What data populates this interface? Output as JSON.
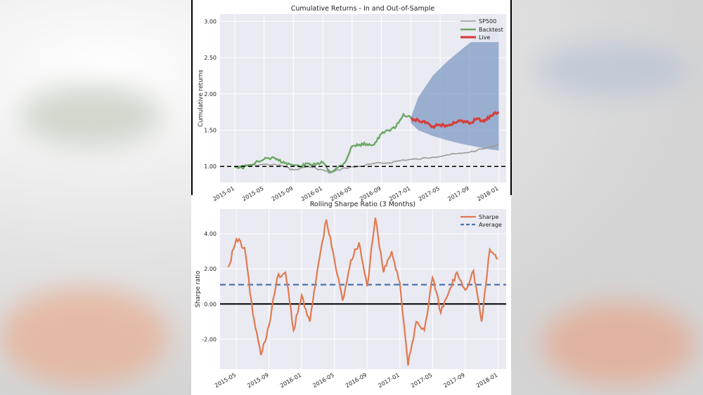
{
  "colors": {
    "plot_bg": "#eaeaf2",
    "grid": "#ffffff",
    "sp500": "#999999",
    "backtest": "#6aa763",
    "live": "#d3403d",
    "cone": "#7f9bc4",
    "sharpe": "#e07a4f",
    "average": "#4c72b0"
  },
  "chart_data": [
    {
      "type": "line",
      "title": "Cumulative Returns - In and Out-of-Sample",
      "xlabel": "",
      "ylabel": "Cumulative returns",
      "ylim": [
        0.78,
        3.1
      ],
      "yticks": [
        "1.00",
        "1.50",
        "2.00",
        "2.50",
        "3.00"
      ],
      "xticks": [
        "2015-01",
        "2015-05",
        "2015-09",
        "2016-01",
        "2016-05",
        "2016-09",
        "2017-01",
        "2017-05",
        "2017-09",
        "2018-01"
      ],
      "legend": {
        "position": "top-right",
        "entries": [
          "SP500",
          "Backtest",
          "Live"
        ]
      },
      "reference_line": 1.0,
      "grid": true,
      "series": [
        {
          "name": "SP500",
          "x": [
            "2015-01",
            "2015-03",
            "2015-05",
            "2015-07",
            "2015-08",
            "2015-09",
            "2015-11",
            "2016-01",
            "2016-02",
            "2016-04",
            "2016-06",
            "2016-08",
            "2016-10",
            "2016-12",
            "2017-02",
            "2017-04",
            "2017-06",
            "2017-08",
            "2017-10",
            "2017-12",
            "2018-01"
          ],
          "values": [
            1.0,
            1.01,
            1.03,
            1.02,
            0.99,
            0.95,
            1.0,
            0.95,
            0.91,
            0.98,
            1.0,
            1.04,
            1.05,
            1.09,
            1.1,
            1.13,
            1.16,
            1.18,
            1.22,
            1.27,
            1.31
          ]
        },
        {
          "name": "Backtest",
          "x": [
            "2015-01",
            "2015-02",
            "2015-03",
            "2015-05",
            "2015-06",
            "2015-07",
            "2015-08",
            "2015-09",
            "2015-10",
            "2015-11",
            "2015-12",
            "2016-01",
            "2016-02",
            "2016-03",
            "2016-04",
            "2016-05",
            "2016-06",
            "2016-07",
            "2016-08",
            "2016-09",
            "2016-10",
            "2016-11",
            "2016-12",
            "2017-01"
          ],
          "values": [
            1.0,
            0.98,
            1.02,
            1.1,
            1.12,
            1.08,
            1.05,
            1.02,
            1.0,
            1.04,
            1.02,
            1.06,
            0.92,
            0.98,
            1.05,
            1.28,
            1.3,
            1.31,
            1.3,
            1.45,
            1.5,
            1.55,
            1.72,
            1.67
          ]
        },
        {
          "name": "Live",
          "x": [
            "2017-01",
            "2017-02",
            "2017-03",
            "2017-04",
            "2017-05",
            "2017-06",
            "2017-07",
            "2017-08",
            "2017-09",
            "2017-10",
            "2017-11",
            "2017-12",
            "2018-01"
          ],
          "values": [
            1.66,
            1.64,
            1.6,
            1.55,
            1.57,
            1.56,
            1.6,
            1.63,
            1.59,
            1.66,
            1.62,
            1.7,
            1.75
          ]
        }
      ],
      "cone": {
        "x": [
          "2017-01",
          "2017-02",
          "2017-04",
          "2017-06",
          "2017-08",
          "2017-10",
          "2017-12",
          "2018-01"
        ],
        "upper": [
          1.67,
          1.95,
          2.25,
          2.45,
          2.62,
          2.78,
          2.9,
          2.95
        ],
        "lower": [
          1.6,
          1.5,
          1.42,
          1.36,
          1.31,
          1.27,
          1.23,
          1.22
        ]
      }
    },
    {
      "type": "line",
      "title": "Rolling Sharpe Ratio (3 Months)",
      "xlabel": "",
      "ylabel": "Sharpe ratio",
      "ylim": [
        -3.7,
        5.4
      ],
      "yticks": [
        "-2.00",
        "0.00",
        "2.00",
        "4.00"
      ],
      "xticks": [
        "2015-05",
        "2015-09",
        "2016-01",
        "2016-05",
        "2016-09",
        "2017-01",
        "2017-05",
        "2017-09",
        "2018-01"
      ],
      "legend": {
        "position": "top-right",
        "entries": [
          "Sharpe",
          "Average"
        ]
      },
      "average": 1.1,
      "zero_line": 0.0,
      "grid": true,
      "series": [
        {
          "name": "Sharpe",
          "x": [
            "2015-04",
            "2015-05",
            "2015-06",
            "2015-07",
            "2015-08",
            "2015-09",
            "2015-10",
            "2015-11",
            "2015-12",
            "2016-01",
            "2016-02",
            "2016-03",
            "2016-04",
            "2016-05",
            "2016-06",
            "2016-07",
            "2016-08",
            "2016-09",
            "2016-10",
            "2016-11",
            "2016-12",
            "2017-01",
            "2017-02",
            "2017-03",
            "2017-04",
            "2017-05",
            "2017-06",
            "2017-07",
            "2017-08",
            "2017-09",
            "2017-10",
            "2017-11",
            "2017-12",
            "2018-01"
          ],
          "values": [
            2.1,
            3.7,
            3.2,
            -0.5,
            -2.9,
            -1.2,
            1.5,
            1.8,
            -1.5,
            0.5,
            -1.0,
            2.2,
            4.8,
            2.5,
            0.2,
            2.5,
            3.5,
            1.0,
            4.9,
            1.8,
            3.0,
            1.2,
            -3.5,
            -1.0,
            -1.5,
            1.5,
            -0.5,
            0.7,
            1.8,
            0.8,
            1.9,
            -1.0,
            3.1,
            2.6
          ]
        }
      ]
    }
  ]
}
